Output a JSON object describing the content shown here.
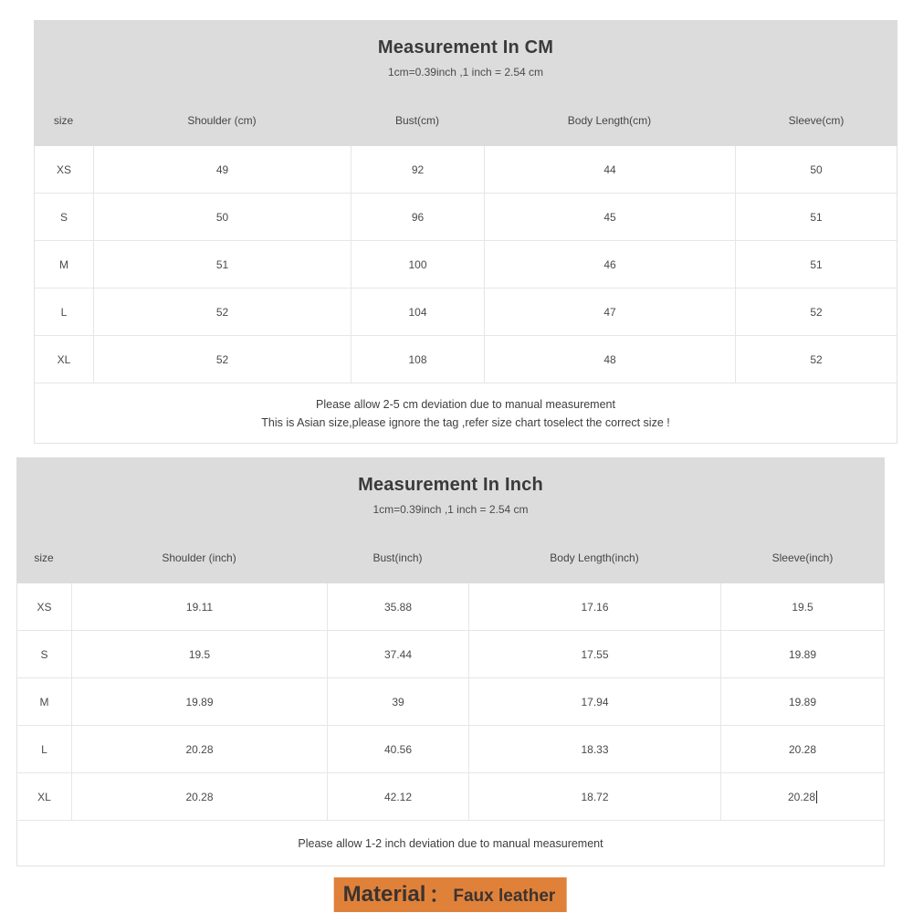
{
  "tables": [
    {
      "id": "cm",
      "title": "Measurement In CM",
      "subtitle": "1cm=0.39inch ,1 inch = 2.54 cm",
      "columns": [
        "size",
        "Shoulder (cm)",
        "Bust(cm)",
        "Body Length(cm)",
        "Sleeve(cm)"
      ],
      "rows": [
        [
          "XS",
          "49",
          "92",
          "44",
          "50"
        ],
        [
          "S",
          "50",
          "96",
          "45",
          "51"
        ],
        [
          "M",
          "51",
          "100",
          "46",
          "51"
        ],
        [
          "L",
          "52",
          "104",
          "47",
          "52"
        ],
        [
          "XL",
          "52",
          "108",
          "48",
          "52"
        ]
      ],
      "notes": [
        "Please allow 2-5 cm deviation due to manual measurement",
        "This is Asian size,please ignore the tag ,refer size chart toselect the correct size !"
      ]
    },
    {
      "id": "inch",
      "title": "Measurement In Inch",
      "subtitle": "1cm=0.39inch ,1 inch = 2.54 cm",
      "columns": [
        "size",
        "Shoulder (inch)",
        "Bust(inch)",
        "Body Length(inch)",
        "Sleeve(inch)"
      ],
      "rows": [
        [
          "XS",
          "19.11",
          "35.88",
          "17.16",
          "19.5"
        ],
        [
          "S",
          "19.5",
          "37.44",
          "17.55",
          "19.89"
        ],
        [
          "M",
          "19.89",
          "39",
          "17.94",
          "19.89"
        ],
        [
          "L",
          "20.28",
          "40.56",
          "18.33",
          "20.28"
        ],
        [
          "XL",
          "20.28",
          "42.12",
          "18.72",
          "20.28"
        ]
      ],
      "notes": [
        "Please allow 1-2 inch deviation due to manual measurement"
      ]
    }
  ],
  "text_cursor": {
    "table_index": 1,
    "row_index": 4,
    "col_index": 4
  },
  "material": {
    "label": "Material",
    "separator": "：",
    "value": "Faux leather",
    "highlight_color": "#e0813a"
  },
  "colors": {
    "table_header_background": "#dcdcdc",
    "table_border": "#e6e6e6",
    "text": "#3f3f3f"
  }
}
